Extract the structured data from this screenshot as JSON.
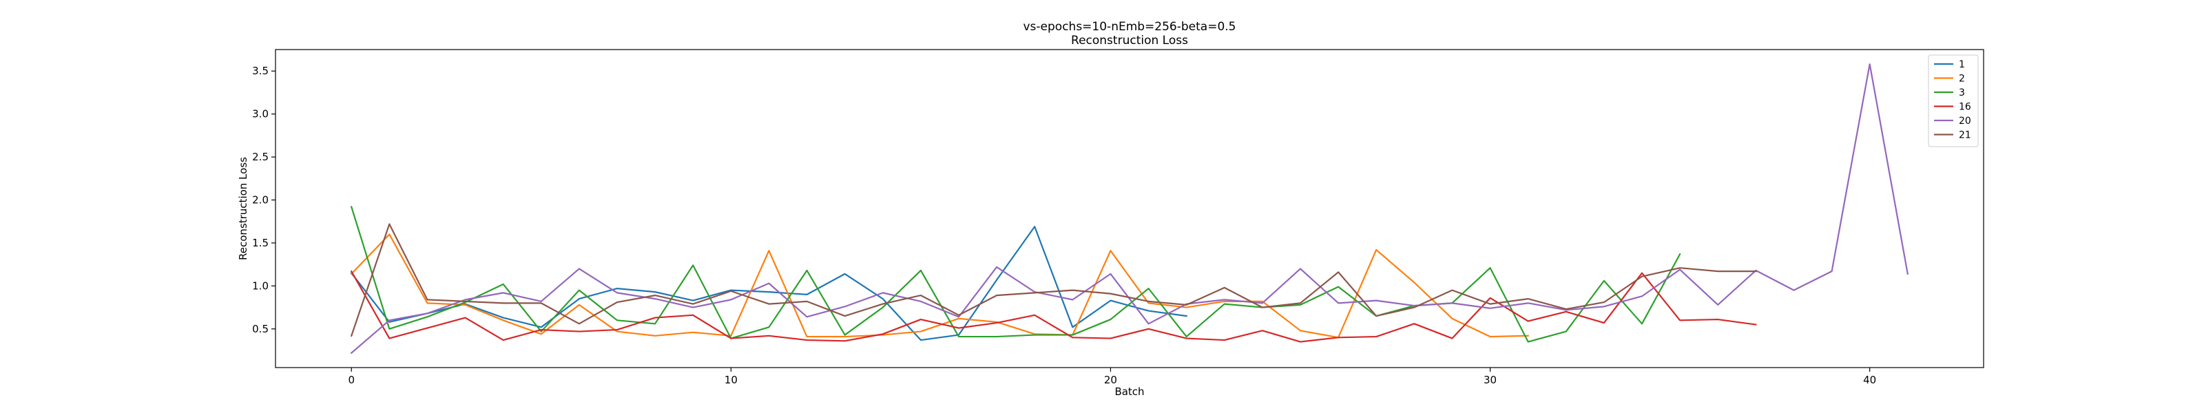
{
  "chart_data": {
    "type": "line",
    "title": "vs-epochs=10-nEmb=256-beta=0.5",
    "subtitle": "Reconstruction Loss",
    "xlabel": "Batch",
    "ylabel": "Reconstruction Loss",
    "xlim": [
      -2,
      43
    ],
    "ylim": [
      0.05,
      3.75
    ],
    "xticks": [
      0,
      10,
      20,
      30,
      40
    ],
    "yticks": [
      0.5,
      1.0,
      1.5,
      2.0,
      2.5,
      3.0,
      3.5
    ],
    "xtick_labels": [
      "0",
      "10",
      "20",
      "30",
      "40"
    ],
    "ytick_labels": [
      "0.5",
      "1.0",
      "1.5",
      "2.0",
      "2.5",
      "3.0",
      "3.5"
    ],
    "grid": false,
    "legend_position": "top-right",
    "series": [
      {
        "name": "1",
        "color": "#1f77b4",
        "values": [
          1.15,
          0.58,
          0.68,
          0.79,
          0.63,
          0.52,
          0.85,
          0.97,
          0.93,
          0.83,
          0.95,
          0.93,
          0.9,
          1.14,
          0.85,
          0.37,
          0.43,
          1.07,
          1.69,
          0.52,
          0.83,
          0.71,
          0.65
        ]
      },
      {
        "name": "2",
        "color": "#ff7f0e",
        "values": [
          1.14,
          1.6,
          0.8,
          0.78,
          0.6,
          0.44,
          0.78,
          0.47,
          0.42,
          0.46,
          0.42,
          1.41,
          0.41,
          0.41,
          0.43,
          0.47,
          0.62,
          0.58,
          0.44,
          0.43,
          1.41,
          0.8,
          0.75,
          0.82,
          0.82,
          0.48,
          0.4,
          1.42,
          1.04,
          0.62,
          0.41,
          0.42
        ]
      },
      {
        "name": "3",
        "color": "#2ca02c",
        "values": [
          1.92,
          0.5,
          0.64,
          0.81,
          1.02,
          0.47,
          0.95,
          0.6,
          0.56,
          1.24,
          0.39,
          0.52,
          1.18,
          0.43,
          0.75,
          1.18,
          0.41,
          0.41,
          0.43,
          0.43,
          0.61,
          0.97,
          0.41,
          0.79,
          0.75,
          0.78,
          0.99,
          0.65,
          0.77,
          0.8,
          1.21,
          0.35,
          0.47,
          1.06,
          0.56,
          1.37
        ]
      },
      {
        "name": "16",
        "color": "#d62728",
        "values": [
          1.17,
          0.39,
          0.51,
          0.63,
          0.37,
          0.49,
          0.47,
          0.49,
          0.63,
          0.66,
          0.39,
          0.42,
          0.37,
          0.36,
          0.44,
          0.61,
          0.51,
          0.57,
          0.66,
          0.4,
          0.39,
          0.5,
          0.39,
          0.37,
          0.48,
          0.35,
          0.4,
          0.41,
          0.56,
          0.39,
          0.86,
          0.59,
          0.7,
          0.57,
          1.15,
          0.6,
          0.61,
          0.55
        ]
      },
      {
        "name": "20",
        "color": "#9467bd",
        "values": [
          0.22,
          0.6,
          0.68,
          0.84,
          0.92,
          0.82,
          1.2,
          0.92,
          0.85,
          0.75,
          0.84,
          1.03,
          0.64,
          0.76,
          0.92,
          0.82,
          0.64,
          1.22,
          0.93,
          0.84,
          1.14,
          0.56,
          0.79,
          0.84,
          0.8,
          1.2,
          0.8,
          0.83,
          0.77,
          0.8,
          0.74,
          0.8,
          0.72,
          0.76,
          0.88,
          1.19,
          0.78,
          1.18,
          0.95,
          1.17,
          3.58,
          1.14
        ]
      },
      {
        "name": "21",
        "color": "#8c564b",
        "values": [
          0.42,
          1.72,
          0.84,
          0.82,
          0.8,
          0.8,
          0.56,
          0.81,
          0.89,
          0.79,
          0.94,
          0.79,
          0.82,
          0.65,
          0.79,
          0.89,
          0.66,
          0.89,
          0.92,
          0.95,
          0.91,
          0.82,
          0.78,
          0.98,
          0.75,
          0.8,
          1.16,
          0.65,
          0.75,
          0.95,
          0.79,
          0.85,
          0.73,
          0.81,
          1.11,
          1.21,
          1.17,
          1.17
        ]
      }
    ]
  }
}
